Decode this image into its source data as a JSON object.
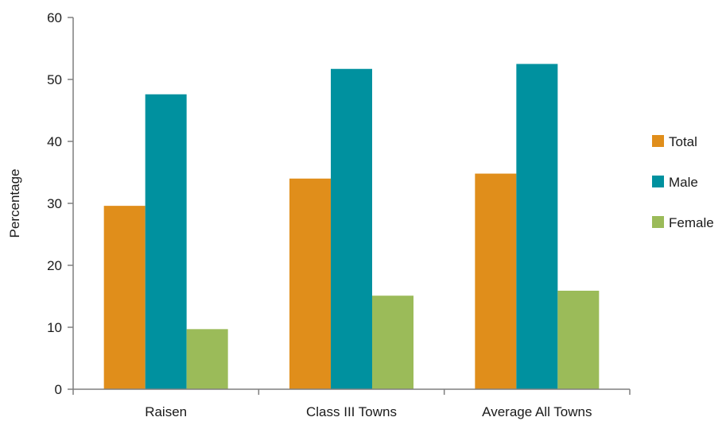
{
  "chart_data": {
    "type": "bar",
    "title": "",
    "xlabel": "",
    "ylabel": "Percentage",
    "ylim": [
      0,
      60
    ],
    "yticks": [
      0,
      10,
      20,
      30,
      40,
      50,
      60
    ],
    "grid": false,
    "legend_position": "right",
    "categories": [
      "Raisen",
      "Class III Towns",
      "Average All Towns"
    ],
    "series": [
      {
        "name": "Total",
        "color": "#e08e1b",
        "values": [
          29.6,
          34.0,
          34.8
        ]
      },
      {
        "name": "Male",
        "color": "#00919f",
        "values": [
          47.6,
          51.7,
          52.5
        ]
      },
      {
        "name": "Female",
        "color": "#9bbb59",
        "values": [
          9.7,
          15.1,
          15.9
        ]
      }
    ]
  }
}
